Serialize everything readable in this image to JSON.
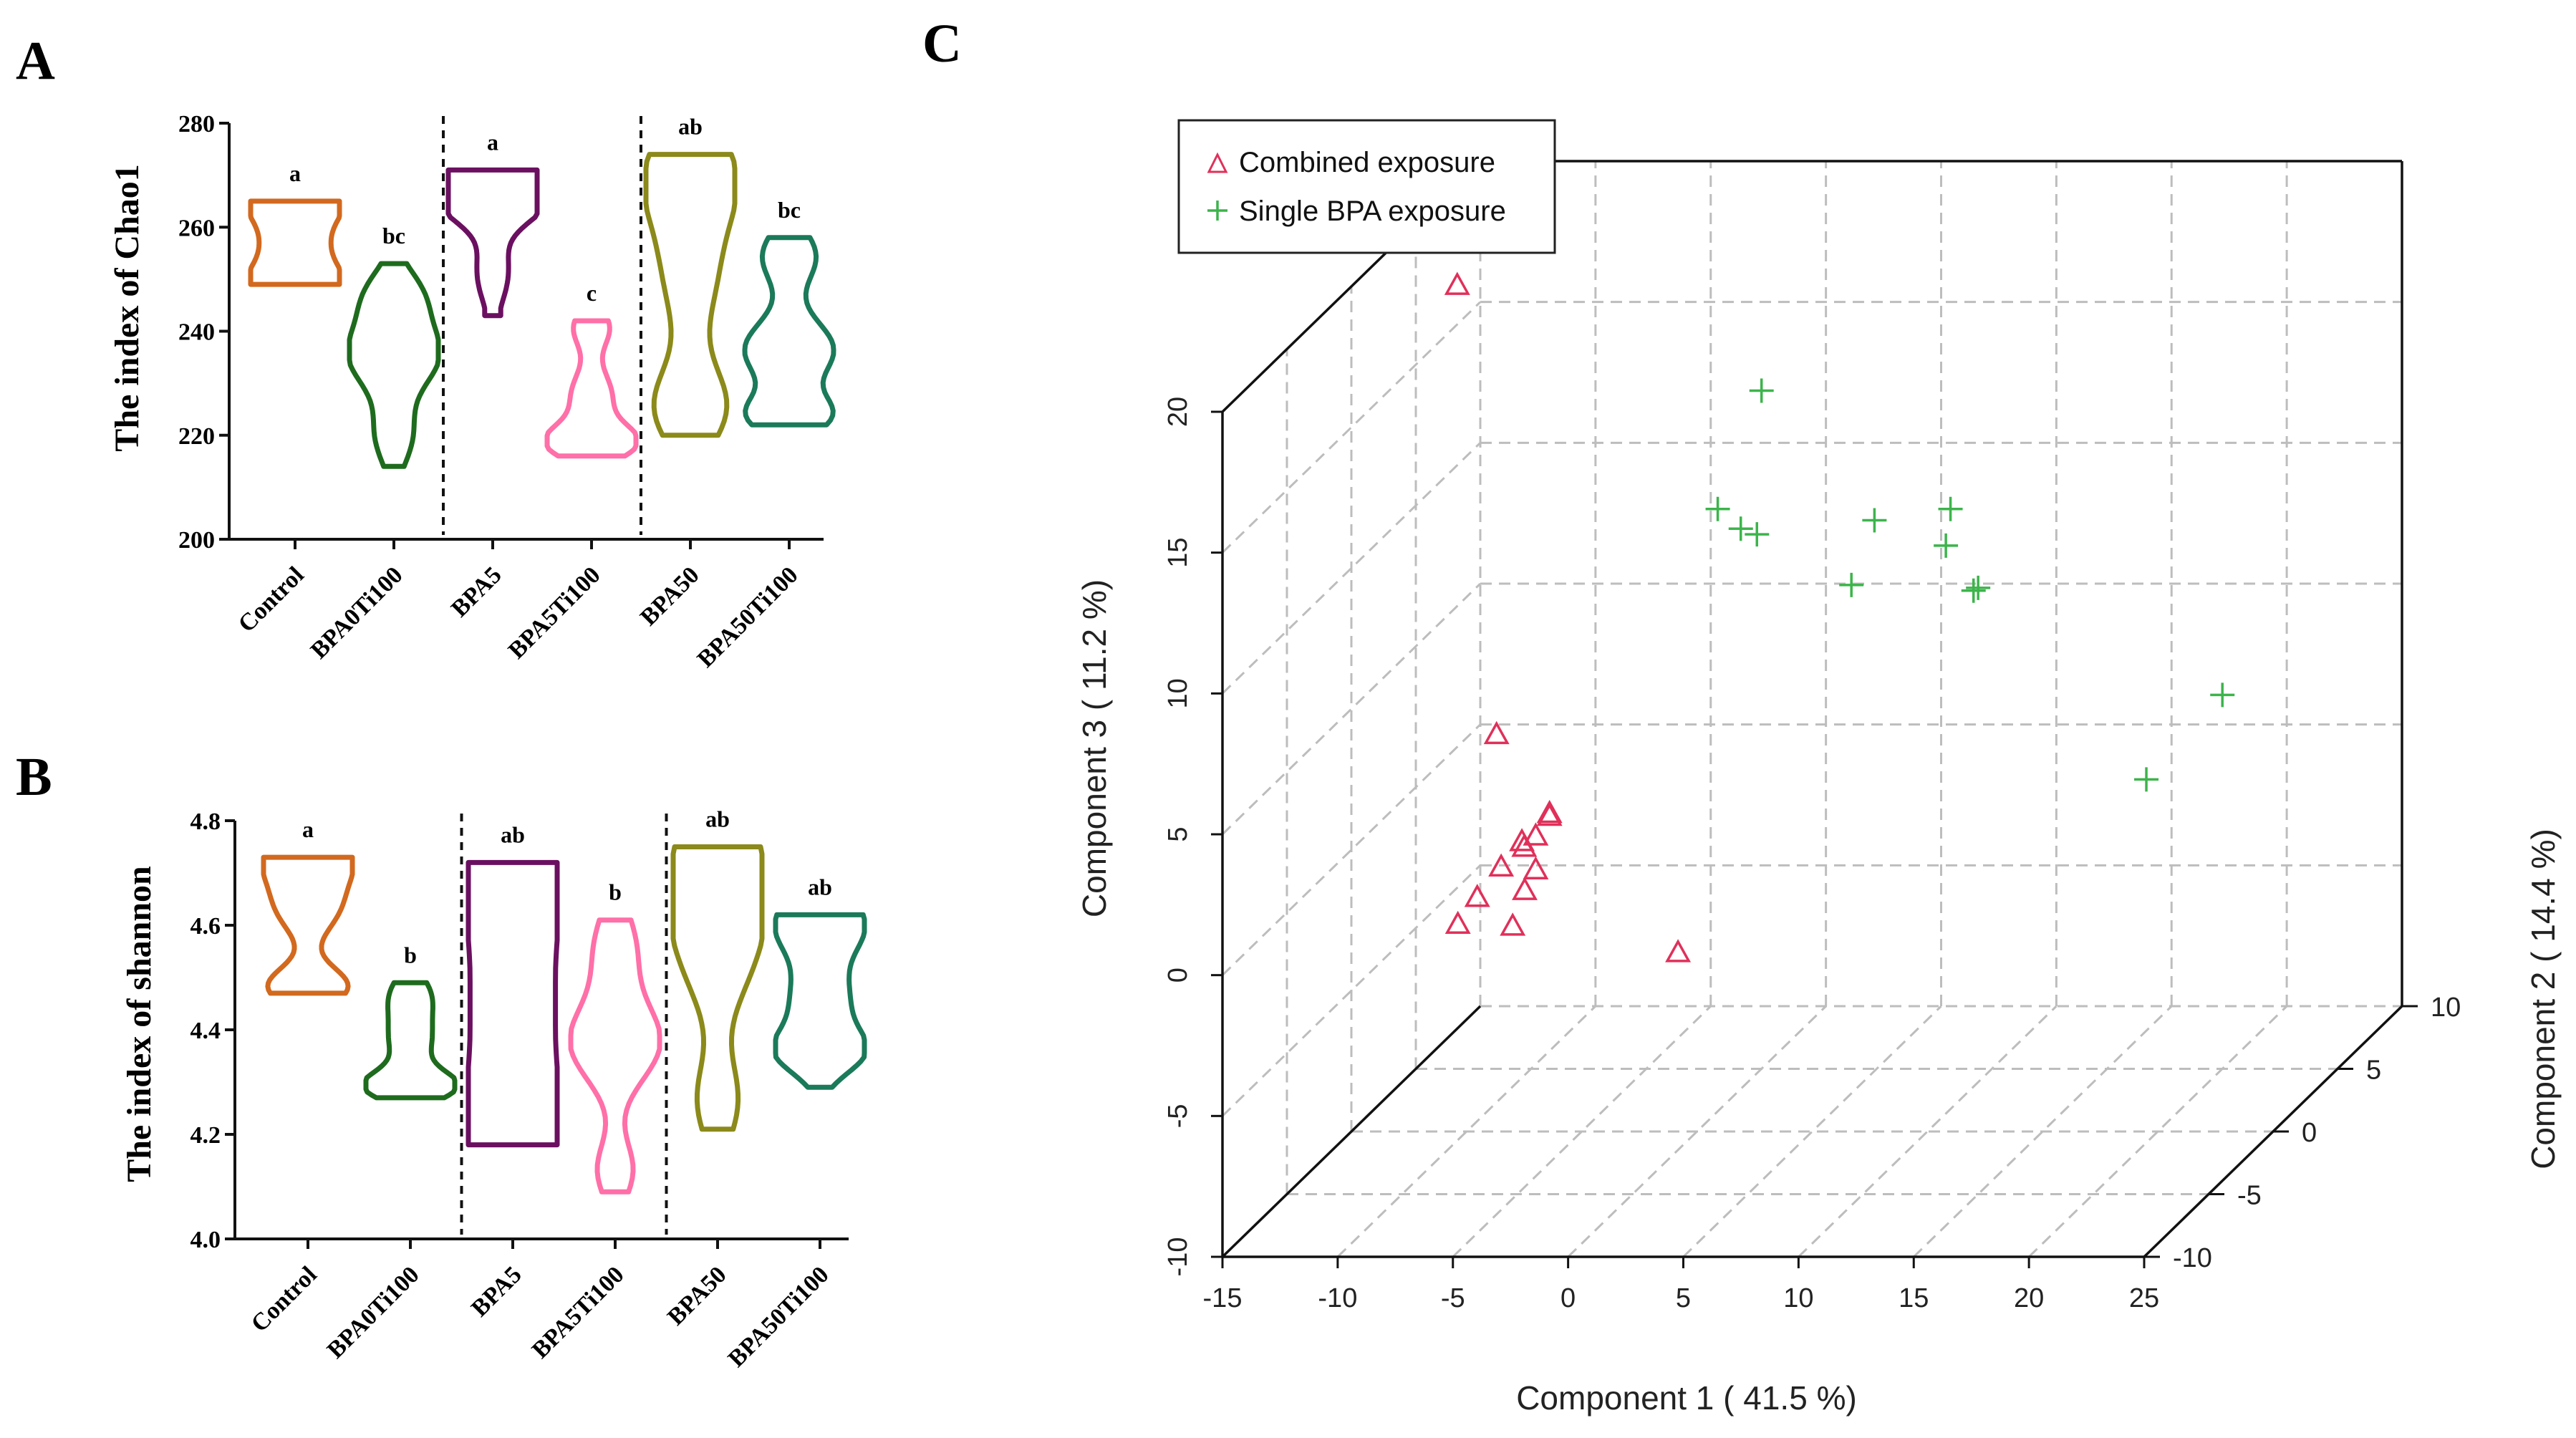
{
  "chart_data": [
    {
      "panel": "A",
      "type": "violin",
      "ylabel": "The index of Chao1",
      "ylim": [
        200,
        280
      ],
      "yticks": [
        "200",
        "220",
        "240",
        "260",
        "280"
      ],
      "categories": [
        "Control",
        "BPA0Ti100",
        "BPA5",
        "BPA5Ti100",
        "BPA50",
        "BPA50Ti100"
      ],
      "significance": [
        "a",
        "bc",
        "a",
        "c",
        "ab",
        "bc"
      ],
      "ranges": [
        [
          249,
          265
        ],
        [
          214,
          253
        ],
        [
          243,
          271
        ],
        [
          216,
          242
        ],
        [
          220,
          274
        ],
        [
          222,
          258
        ]
      ],
      "colors": [
        "#d2691e",
        "#1e6b1e",
        "#6b1060",
        "#ff6fa8",
        "#8b8a1a",
        "#1a7a5a"
      ],
      "separators_after": [
        2,
        4
      ]
    },
    {
      "panel": "B",
      "type": "violin",
      "ylabel": "The index of shannon",
      "ylim": [
        4.0,
        4.8
      ],
      "yticks": [
        "4.0",
        "4.2",
        "4.4",
        "4.6",
        "4.8"
      ],
      "categories": [
        "Control",
        "BPA0Ti100",
        "BPA5",
        "BPA5Ti100",
        "BPA50",
        "BPA50Ti100"
      ],
      "significance": [
        "a",
        "b",
        "ab",
        "b",
        "ab",
        "ab"
      ],
      "ranges": [
        [
          4.47,
          4.73
        ],
        [
          4.27,
          4.49
        ],
        [
          4.18,
          4.72
        ],
        [
          4.09,
          4.61
        ],
        [
          4.21,
          4.75
        ],
        [
          4.29,
          4.62
        ]
      ],
      "colors": [
        "#d2691e",
        "#1e6b1e",
        "#6b1060",
        "#ff6fa8",
        "#8b8a1a",
        "#1a7a5a"
      ],
      "separators_after": [
        2,
        4
      ]
    },
    {
      "panel": "C",
      "type": "scatter3d",
      "xlabel": "Component 1 ( 41.5 %)",
      "ylabel": "Component 2 ( 14.4 %)",
      "zlabel": "Component 3 ( 11.2 %)",
      "xticks": [
        "-15",
        "-10",
        "-5",
        "0",
        "5",
        "10",
        "15",
        "20",
        "25"
      ],
      "yticks": [
        "-10",
        "-5",
        "0",
        "5",
        "10"
      ],
      "zticks": [
        "-10",
        "-5",
        "0",
        "5",
        "10",
        "15",
        "20"
      ],
      "xlim": [
        -15,
        25
      ],
      "ylim": [
        -10,
        10
      ],
      "zlim": [
        -10,
        20
      ],
      "legend": [
        "Combined exposure",
        "Single BPA exposure"
      ],
      "series": [
        {
          "name": "Combined exposure",
          "marker": "triangle",
          "color": "#e0305a",
          "points": [
            [
              -16.0,
              10,
              15.6
            ],
            [
              -5.3,
              8,
              -7.2
            ],
            [
              -8.7,
              0,
              4.1
            ],
            [
              -7.6,
              0,
              0.3
            ],
            [
              -8.5,
              0,
              -0.6
            ],
            [
              -7.5,
              0,
              0.1
            ],
            [
              -7.0,
              0,
              0.5
            ],
            [
              -7.0,
              0,
              -0.7
            ],
            [
              -6.4,
              0,
              1.3
            ],
            [
              -6.4,
              0,
              1.2
            ],
            [
              -8.0,
              0,
              -2.7
            ],
            [
              -8.7,
              -3,
              -1.3
            ],
            [
              -7.3,
              -4,
              0.1
            ],
            [
              -5.8,
              -3,
              -0.1
            ]
          ]
        },
        {
          "name": "Single BPA exposure",
          "marker": "plus",
          "color": "#3cb44b",
          "points": [
            [
              2.8,
              0,
              16.3
            ],
            [
              0.9,
              0,
              12.1
            ],
            [
              1.9,
              0,
              11.4
            ],
            [
              2.6,
              0,
              11.2
            ],
            [
              7.7,
              0,
              11.7
            ],
            [
              11.0,
              0,
              12.1
            ],
            [
              10.8,
              0,
              10.8
            ],
            [
              6.7,
              0,
              9.4
            ],
            [
              12.0,
              0,
              9.2
            ],
            [
              12.2,
              0,
              9.3
            ],
            [
              22.8,
              0,
              5.5
            ],
            [
              19.5,
              0,
              2.5
            ]
          ]
        }
      ]
    }
  ]
}
